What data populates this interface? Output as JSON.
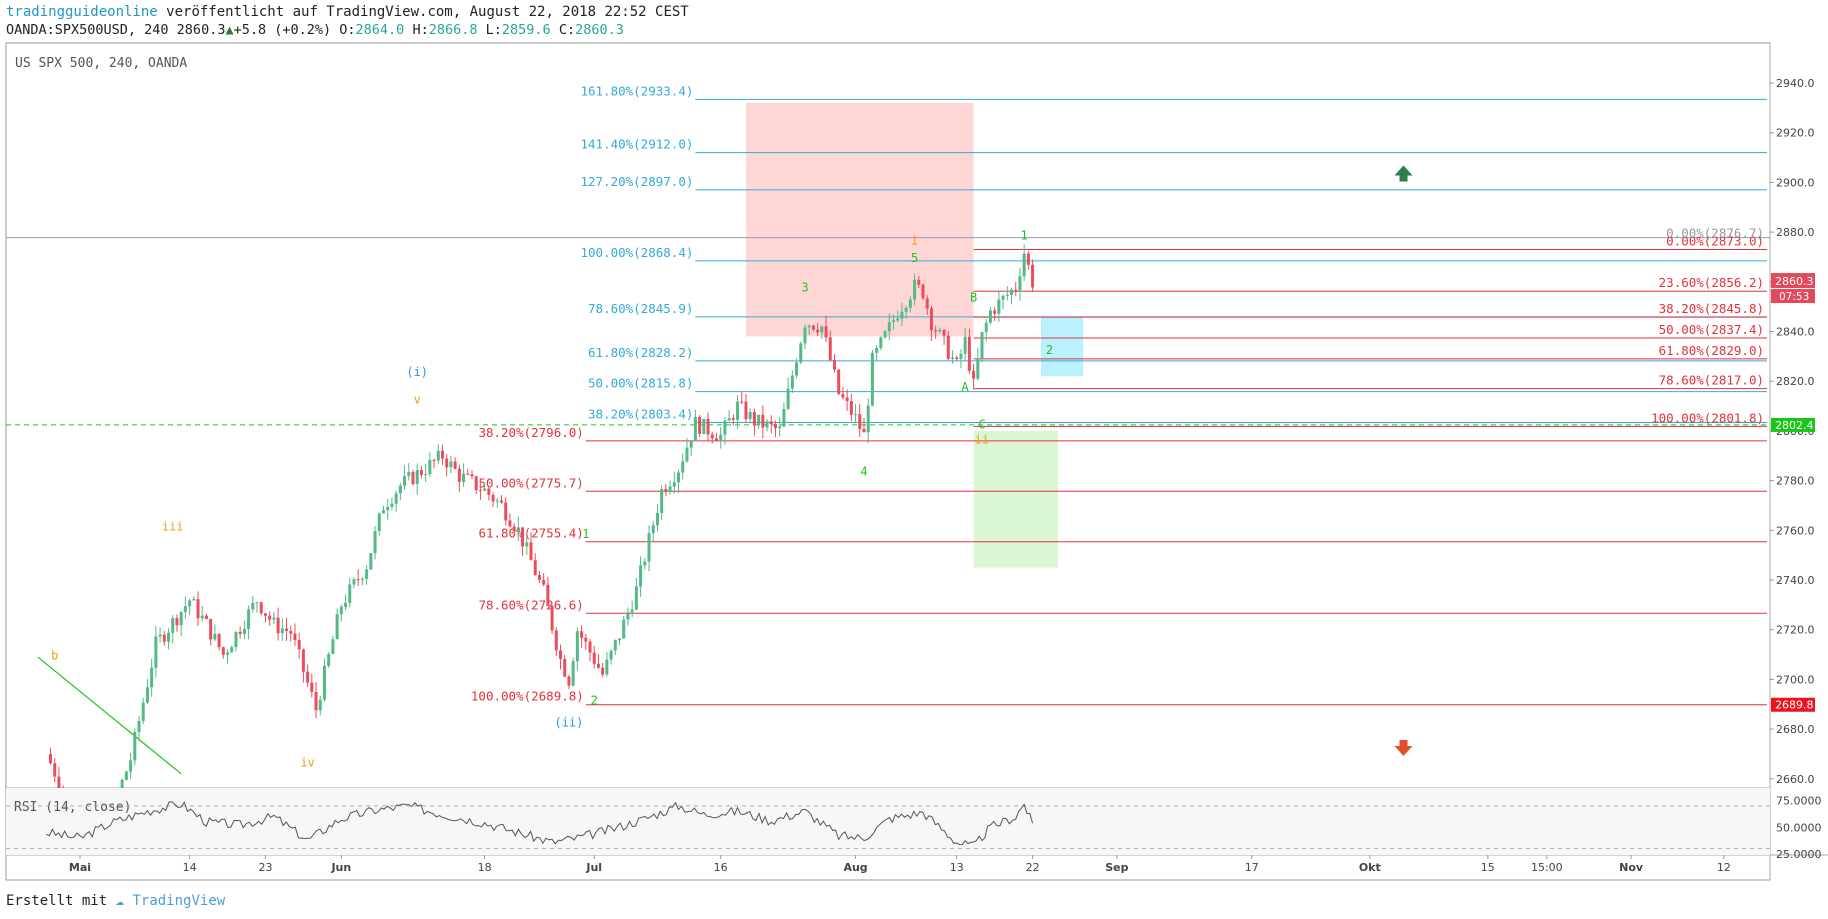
{
  "header": {
    "publisher": "tradingguideonline",
    "published_text": "veröffentlicht auf TradingView.com, August 22, 2018 22:52 CEST",
    "symbol_line_prefix": "OANDA:SPX500USD, 240 2860.3",
    "change": "+5.8 (+0.2%)",
    "o_label": "O:",
    "o_val": "2864.0",
    "h_label": "H:",
    "h_val": "2866.8",
    "l_label": "L:",
    "l_val": "2859.6",
    "c_label": "C:",
    "c_val": "2860.3"
  },
  "footer": {
    "made_with": "Erstellt mit",
    "brand": "TradingView"
  },
  "chart_data": {
    "type": "candlestick",
    "title": "US SPX 500, 240, OANDA",
    "y_axis": {
      "min": 2660,
      "max": 2950,
      "ticks": [
        "2940.0",
        "2920.0",
        "2900.0",
        "2880.0",
        "2860.0",
        "2840.0",
        "2820.0",
        "2800.0",
        "2780.0",
        "2760.0",
        "2740.0",
        "2720.0",
        "2700.0",
        "2680.0",
        "2660.0"
      ]
    },
    "x_axis": {
      "ticks": [
        {
          "label": "Mai",
          "bold": true,
          "date": "2018-05-01"
        },
        {
          "label": "14",
          "date": "2018-05-14"
        },
        {
          "label": "23",
          "date": "2018-05-23"
        },
        {
          "label": "Jun",
          "bold": true,
          "date": "2018-06-01"
        },
        {
          "label": "18",
          "date": "2018-06-18"
        },
        {
          "label": "Jul",
          "bold": true,
          "date": "2018-07-01"
        },
        {
          "label": "16",
          "date": "2018-07-16"
        },
        {
          "label": "Aug",
          "bold": true,
          "date": "2018-08-01"
        },
        {
          "label": "13",
          "date": "2018-08-13"
        },
        {
          "label": "22",
          "date": "2018-08-22"
        },
        {
          "label": "Sep",
          "bold": true,
          "date": "2018-09-01"
        },
        {
          "label": "17",
          "date": "2018-09-17"
        },
        {
          "label": "Okt",
          "bold": true,
          "date": "2018-10-01"
        },
        {
          "label": "15",
          "date": "2018-10-15"
        },
        {
          "label": "15:00",
          "date": "2018-10-22"
        },
        {
          "label": "Nov",
          "bold": true,
          "date": "2018-11-01"
        },
        {
          "label": "12",
          "date": "2018-11-12"
        }
      ]
    },
    "price_path": [
      {
        "date": "2018-04-27",
        "price": 2670
      },
      {
        "date": "2018-04-30",
        "price": 2648
      },
      {
        "date": "2018-05-03",
        "price": 2630
      },
      {
        "date": "2018-05-07",
        "price": 2668
      },
      {
        "date": "2018-05-10",
        "price": 2714
      },
      {
        "date": "2018-05-14",
        "price": 2732
      },
      {
        "date": "2018-05-16",
        "price": 2722
      },
      {
        "date": "2018-05-18",
        "price": 2710
      },
      {
        "date": "2018-05-22",
        "price": 2732
      },
      {
        "date": "2018-05-24",
        "price": 2722
      },
      {
        "date": "2018-05-26",
        "price": 2719
      },
      {
        "date": "2018-05-29",
        "price": 2688
      },
      {
        "date": "2018-06-01",
        "price": 2730
      },
      {
        "date": "2018-06-04",
        "price": 2746
      },
      {
        "date": "2018-06-06",
        "price": 2770
      },
      {
        "date": "2018-06-08",
        "price": 2778
      },
      {
        "date": "2018-06-11",
        "price": 2785
      },
      {
        "date": "2018-06-13",
        "price": 2790
      },
      {
        "date": "2018-06-15",
        "price": 2782
      },
      {
        "date": "2018-06-18",
        "price": 2776
      },
      {
        "date": "2018-06-20",
        "price": 2770
      },
      {
        "date": "2018-06-22",
        "price": 2760
      },
      {
        "date": "2018-06-25",
        "price": 2735
      },
      {
        "date": "2018-06-27",
        "price": 2708
      },
      {
        "date": "2018-06-28",
        "price": 2700
      },
      {
        "date": "2018-06-29",
        "price": 2720
      },
      {
        "date": "2018-07-02",
        "price": 2702
      },
      {
        "date": "2018-07-04",
        "price": 2718
      },
      {
        "date": "2018-07-06",
        "price": 2736
      },
      {
        "date": "2018-07-09",
        "price": 2776
      },
      {
        "date": "2018-07-11",
        "price": 2785
      },
      {
        "date": "2018-07-13",
        "price": 2803
      },
      {
        "date": "2018-07-16",
        "price": 2798
      },
      {
        "date": "2018-07-18",
        "price": 2810
      },
      {
        "date": "2018-07-20",
        "price": 2804
      },
      {
        "date": "2018-07-23",
        "price": 2800
      },
      {
        "date": "2018-07-25",
        "price": 2830
      },
      {
        "date": "2018-07-26",
        "price": 2844
      },
      {
        "date": "2018-07-28",
        "price": 2842
      },
      {
        "date": "2018-07-30",
        "price": 2815
      },
      {
        "date": "2018-08-01",
        "price": 2805
      },
      {
        "date": "2018-08-02",
        "price": 2798
      },
      {
        "date": "2018-08-03",
        "price": 2828
      },
      {
        "date": "2018-08-06",
        "price": 2848
      },
      {
        "date": "2018-08-08",
        "price": 2858
      },
      {
        "date": "2018-08-09",
        "price": 2856
      },
      {
        "date": "2018-08-10",
        "price": 2844
      },
      {
        "date": "2018-08-13",
        "price": 2826
      },
      {
        "date": "2018-08-14",
        "price": 2836
      },
      {
        "date": "2018-08-15",
        "price": 2818
      },
      {
        "date": "2018-08-16",
        "price": 2838
      },
      {
        "date": "2018-08-17",
        "price": 2848
      },
      {
        "date": "2018-08-20",
        "price": 2858
      },
      {
        "date": "2018-08-21",
        "price": 2872
      },
      {
        "date": "2018-08-22",
        "price": 2860
      }
    ],
    "last_price": {
      "value": "2860.3",
      "countdown": "07:53",
      "y": 2860.3
    },
    "fib_right_blue": [
      {
        "label": "161.80%(2933.4)",
        "y": 2933.4
      },
      {
        "label": "141.40%(2912.0)",
        "y": 2912.0
      },
      {
        "label": "127.20%(2897.0)",
        "y": 2897.0
      },
      {
        "label": "100.00%(2868.4)",
        "y": 2868.4
      },
      {
        "label": "78.60%(2845.9)",
        "y": 2845.9
      },
      {
        "label": "61.80%(2828.2)",
        "y": 2828.2
      },
      {
        "label": "50.00%(2815.8)",
        "y": 2815.8
      },
      {
        "label": "38.20%(2803.4)",
        "y": 2803.4
      }
    ],
    "fib_left_red": [
      {
        "label": "38.20%(2796.0)",
        "y": 2796.0
      },
      {
        "label": "50.00%(2775.7)",
        "y": 2775.7
      },
      {
        "label": "61.80%(2755.4)",
        "y": 2755.4
      },
      {
        "label": "78.60%(2726.6)",
        "y": 2726.6
      },
      {
        "label": "100.00%(2689.8)",
        "y": 2689.8
      }
    ],
    "fib_short_red": [
      {
        "label": "0.00%(2873.0)",
        "y": 2873.0
      },
      {
        "label": "23.60%(2856.2)",
        "y": 2856.2
      },
      {
        "label": "38.20%(2845.8)",
        "y": 2845.8
      },
      {
        "label": "50.00%(2837.4)",
        "y": 2837.4
      },
      {
        "label": "61.80%(2829.0)",
        "y": 2829.0
      },
      {
        "label": "78.60%(2817.0)",
        "y": 2817.0
      },
      {
        "label": "100.00%(2801.8)",
        "y": 2801.8
      }
    ],
    "fib_gray": {
      "label": "0.00%(2876.7)",
      "y": 2876.7
    },
    "axis_badges": [
      {
        "value": "2802.4",
        "y": 2802.4,
        "color": "#19c619"
      },
      {
        "value": "2689.8",
        "y": 2689.8,
        "color": "#e8141e"
      }
    ],
    "dashed_level": {
      "y": 2802.4
    },
    "wave_labels": [
      {
        "text": "(i)",
        "date": "2018-06-10",
        "y": 2822,
        "color": "#2196f3"
      },
      {
        "text": "(ii)",
        "date": "2018-06-28",
        "y": 2681,
        "color": "#2196f3"
      },
      {
        "text": "v",
        "date": "2018-06-10",
        "y": 2811,
        "color": "#f39c12"
      },
      {
        "text": "iii",
        "date": "2018-05-12",
        "y": 2760,
        "color": "#f39c12"
      },
      {
        "text": "iv",
        "date": "2018-05-28",
        "y": 2665,
        "color": "#f39c12"
      },
      {
        "text": "b",
        "date": "2018-04-28",
        "y": 2708,
        "color": "#f39c12"
      },
      {
        "text": "i",
        "date": "2018-08-08",
        "y": 2875,
        "color": "#f39c12"
      },
      {
        "text": "ii",
        "date": "2018-08-16",
        "y": 2795,
        "color": "#f39c12"
      },
      {
        "text": "1",
        "date": "2018-06-30",
        "y": 2757,
        "color": "#19c619"
      },
      {
        "text": "2",
        "date": "2018-07-01",
        "y": 2690,
        "color": "#19c619"
      },
      {
        "text": "3",
        "date": "2018-07-26",
        "y": 2856,
        "color": "#19c619"
      },
      {
        "text": "4",
        "date": "2018-08-02",
        "y": 2782,
        "color": "#19c619"
      },
      {
        "text": "5",
        "date": "2018-08-08",
        "y": 2868,
        "color": "#19c619"
      },
      {
        "text": "A",
        "date": "2018-08-14",
        "y": 2816,
        "color": "#19c619"
      },
      {
        "text": "B",
        "date": "2018-08-15",
        "y": 2852,
        "color": "#19c619"
      },
      {
        "text": "C",
        "date": "2018-08-16",
        "y": 2801,
        "color": "#19c619"
      },
      {
        "text": "1",
        "date": "2018-08-21",
        "y": 2877,
        "color": "#19c619"
      },
      {
        "text": "2",
        "date": "2018-08-24",
        "y": 2831,
        "color": "#19c619"
      }
    ],
    "zones": [
      {
        "name": "resistance",
        "date_from": "2018-07-19",
        "date_to": "2018-08-15",
        "y_from": 2838,
        "y_to": 2932,
        "color": "#ffd6d6"
      },
      {
        "name": "support",
        "date_from": "2018-08-15",
        "date_to": "2018-08-25",
        "y_from": 2745,
        "y_to": 2800,
        "color": "#d9f7d2"
      },
      {
        "name": "target",
        "date_from": "2018-08-23",
        "date_to": "2018-08-28",
        "y_from": 2822,
        "y_to": 2846,
        "color": "#b9f1ff"
      }
    ],
    "arrows": [
      {
        "dir": "up",
        "date": "2018-10-05",
        "y": 2904,
        "color": "#2e7d4f"
      },
      {
        "dir": "down",
        "date": "2018-10-05",
        "y": 2672,
        "color": "#e0502a"
      }
    ],
    "trendline": {
      "from": {
        "date": "2018-04-26",
        "y": 2709
      },
      "to": {
        "date": "2018-05-13",
        "y": 2662
      }
    },
    "horizontal_line": {
      "y": 2877.8
    },
    "rsi": {
      "title": "RSI (14, close)",
      "ticks": [
        {
          "label": "75.0000",
          "v": 75
        },
        {
          "label": "50.0000",
          "v": 50
        },
        {
          "label": "25.0000",
          "v": 25
        }
      ],
      "levels": [
        70,
        30
      ],
      "points": [
        {
          "date": "2018-04-27",
          "v": 45
        },
        {
          "date": "2018-05-01",
          "v": 40
        },
        {
          "date": "2018-05-05",
          "v": 55
        },
        {
          "date": "2018-05-09",
          "v": 65
        },
        {
          "date": "2018-05-13",
          "v": 72
        },
        {
          "date": "2018-05-16",
          "v": 55
        },
        {
          "date": "2018-05-20",
          "v": 52
        },
        {
          "date": "2018-05-24",
          "v": 60
        },
        {
          "date": "2018-05-28",
          "v": 38
        },
        {
          "date": "2018-06-01",
          "v": 58
        },
        {
          "date": "2018-06-05",
          "v": 66
        },
        {
          "date": "2018-06-09",
          "v": 70
        },
        {
          "date": "2018-06-13",
          "v": 62
        },
        {
          "date": "2018-06-18",
          "v": 54
        },
        {
          "date": "2018-06-22",
          "v": 45
        },
        {
          "date": "2018-06-26",
          "v": 36
        },
        {
          "date": "2018-06-29",
          "v": 40
        },
        {
          "date": "2018-07-03",
          "v": 48
        },
        {
          "date": "2018-07-07",
          "v": 58
        },
        {
          "date": "2018-07-11",
          "v": 70
        },
        {
          "date": "2018-07-14",
          "v": 62
        },
        {
          "date": "2018-07-18",
          "v": 65
        },
        {
          "date": "2018-07-22",
          "v": 56
        },
        {
          "date": "2018-07-26",
          "v": 65
        },
        {
          "date": "2018-07-30",
          "v": 42
        },
        {
          "date": "2018-08-02",
          "v": 40
        },
        {
          "date": "2018-08-05",
          "v": 58
        },
        {
          "date": "2018-08-09",
          "v": 64
        },
        {
          "date": "2018-08-13",
          "v": 36
        },
        {
          "date": "2018-08-15",
          "v": 32
        },
        {
          "date": "2018-08-17",
          "v": 50
        },
        {
          "date": "2018-08-20",
          "v": 60
        },
        {
          "date": "2018-08-21",
          "v": 72
        },
        {
          "date": "2018-08-22",
          "v": 52
        }
      ]
    }
  }
}
